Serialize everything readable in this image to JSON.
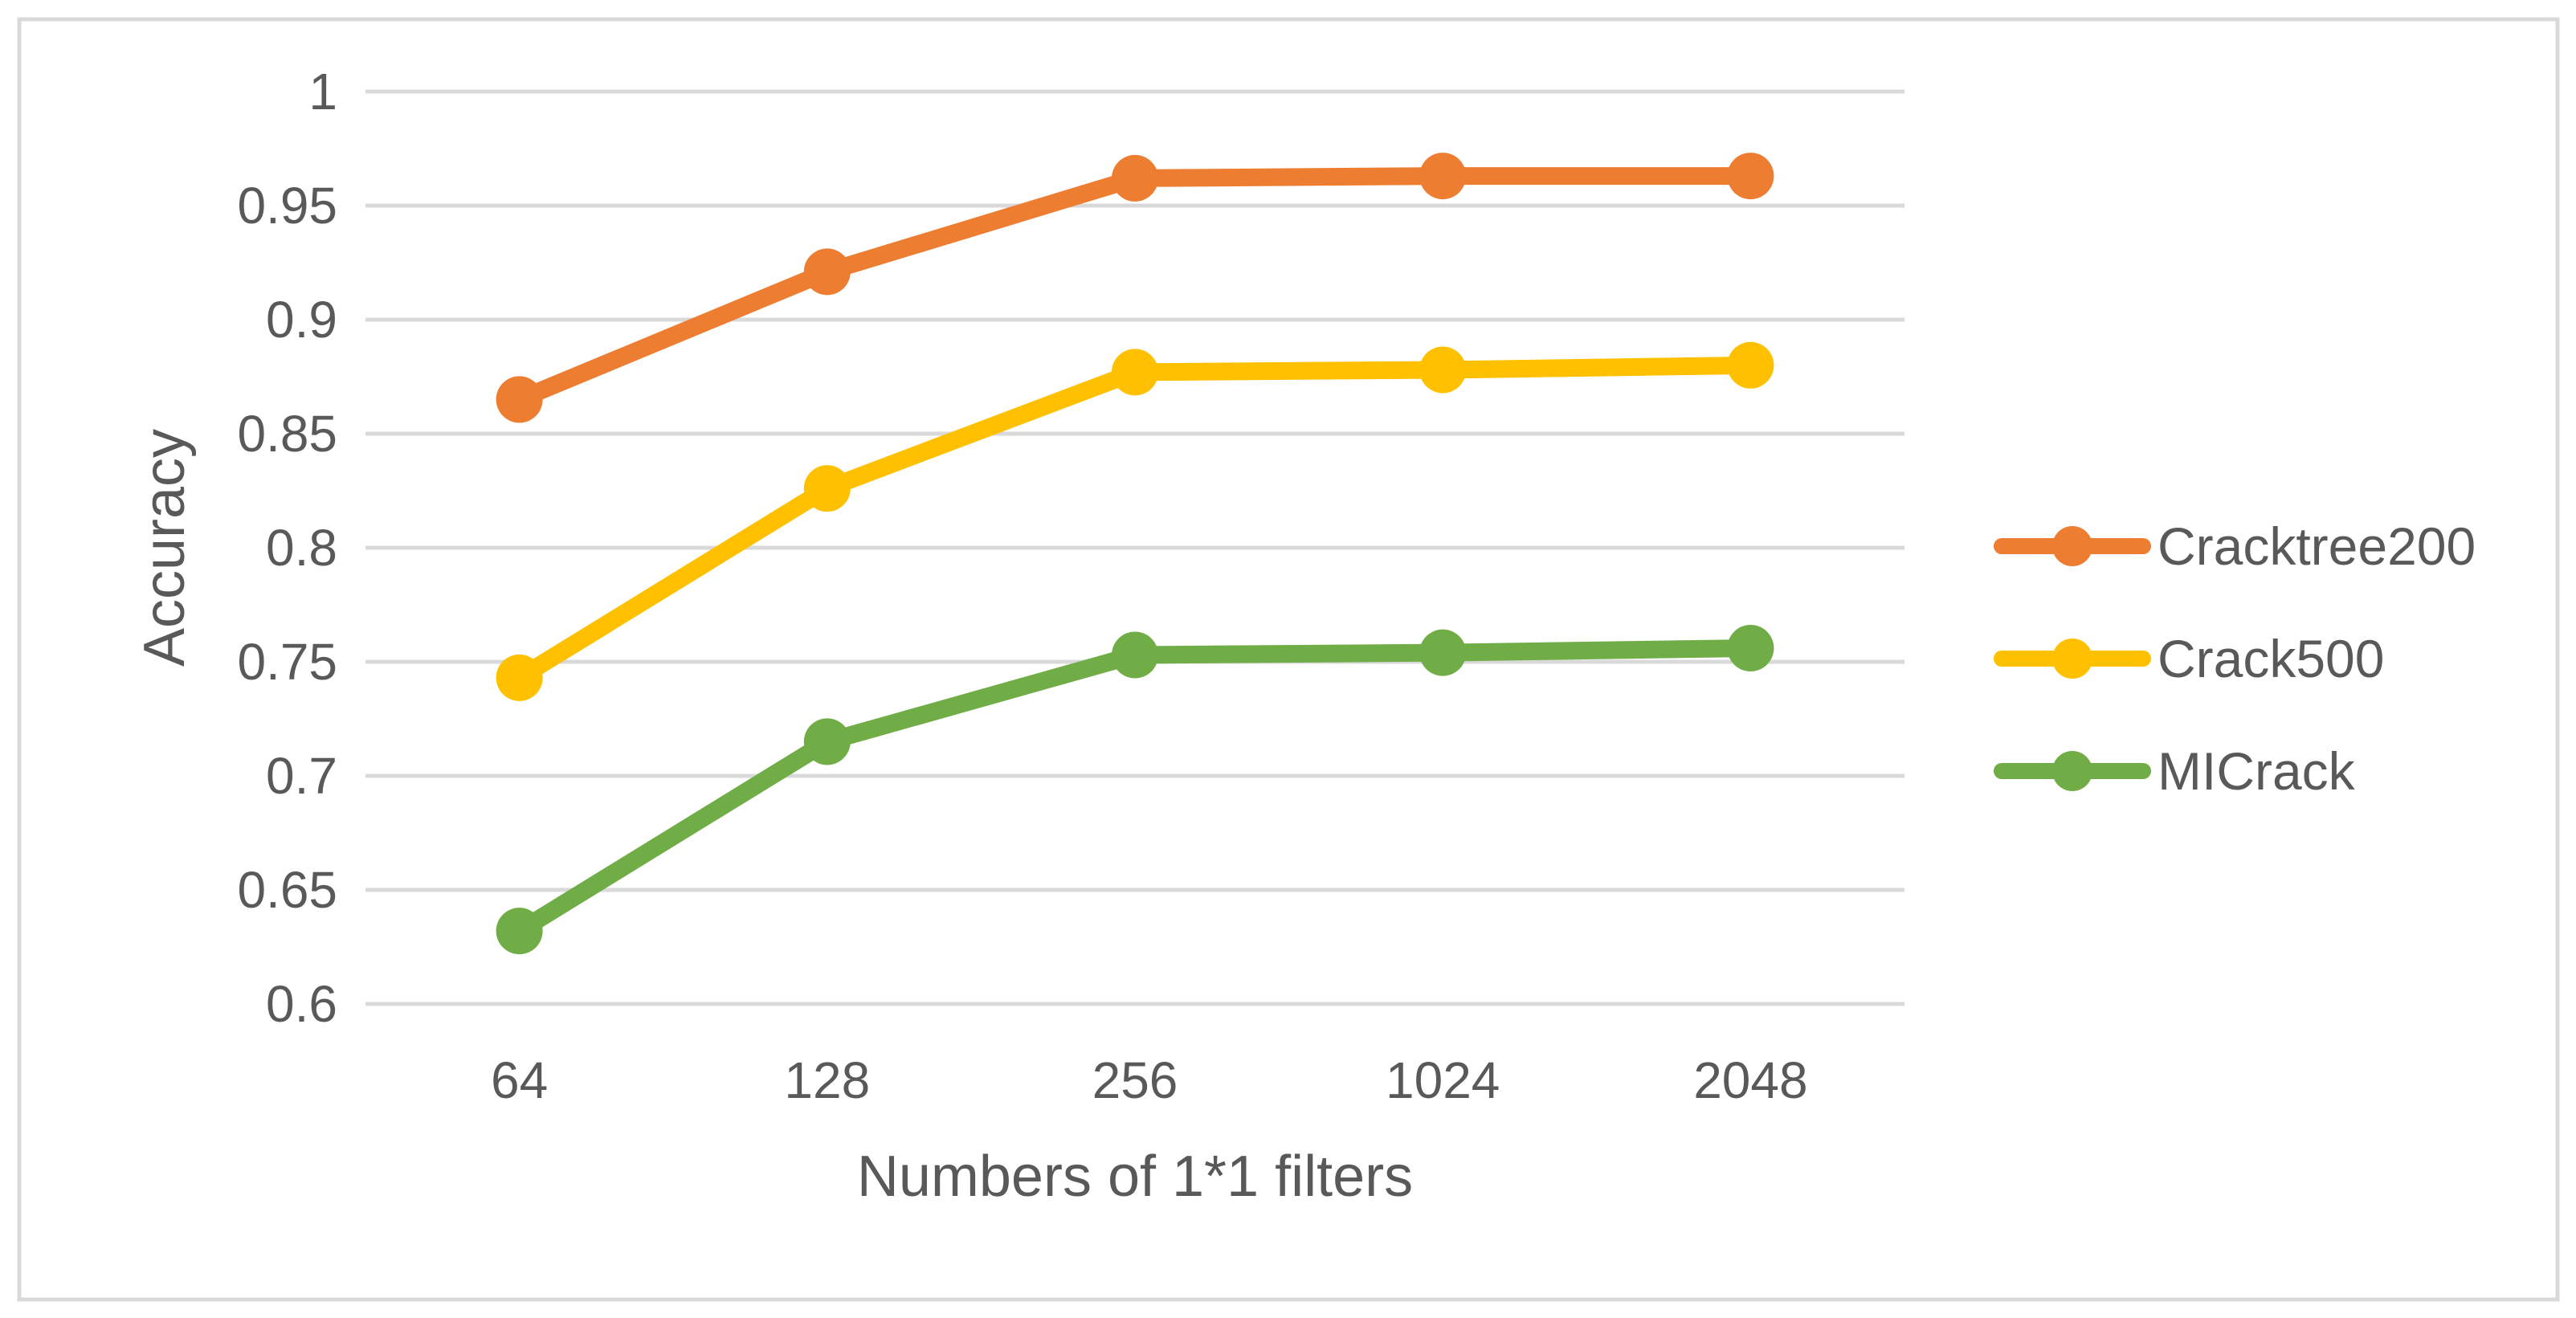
{
  "figure": {
    "background_color": "#ffffff",
    "border_color": "#d9d9d9",
    "text_color": "#595959",
    "grid_color": "#d9d9d9"
  },
  "chart_data": {
    "type": "line",
    "title": "",
    "xlabel": "Numbers of 1*1 filters",
    "ylabel": "Accuracy",
    "categories": [
      "64",
      "128",
      "256",
      "1024",
      "2048"
    ],
    "series": [
      {
        "name": "Cracktree200",
        "color": "#ED7D31",
        "values": [
          0.865,
          0.921,
          0.962,
          0.963,
          0.963
        ]
      },
      {
        "name": "Crack500",
        "color": "#FFC000",
        "values": [
          0.743,
          0.826,
          0.877,
          0.878,
          0.88
        ]
      },
      {
        "name": "MICrack",
        "color": "#70AD47",
        "values": [
          0.632,
          0.715,
          0.753,
          0.754,
          0.756
        ]
      }
    ],
    "ylim": [
      0.6,
      1.0
    ],
    "ytick_step": 0.05,
    "ytick_labels": [
      "1",
      "0.95",
      "0.9",
      "0.85",
      "0.8",
      "0.75",
      "0.7",
      "0.65",
      "0.6"
    ],
    "grid": "horizontal",
    "legend_position": "right",
    "markers": "circle"
  }
}
